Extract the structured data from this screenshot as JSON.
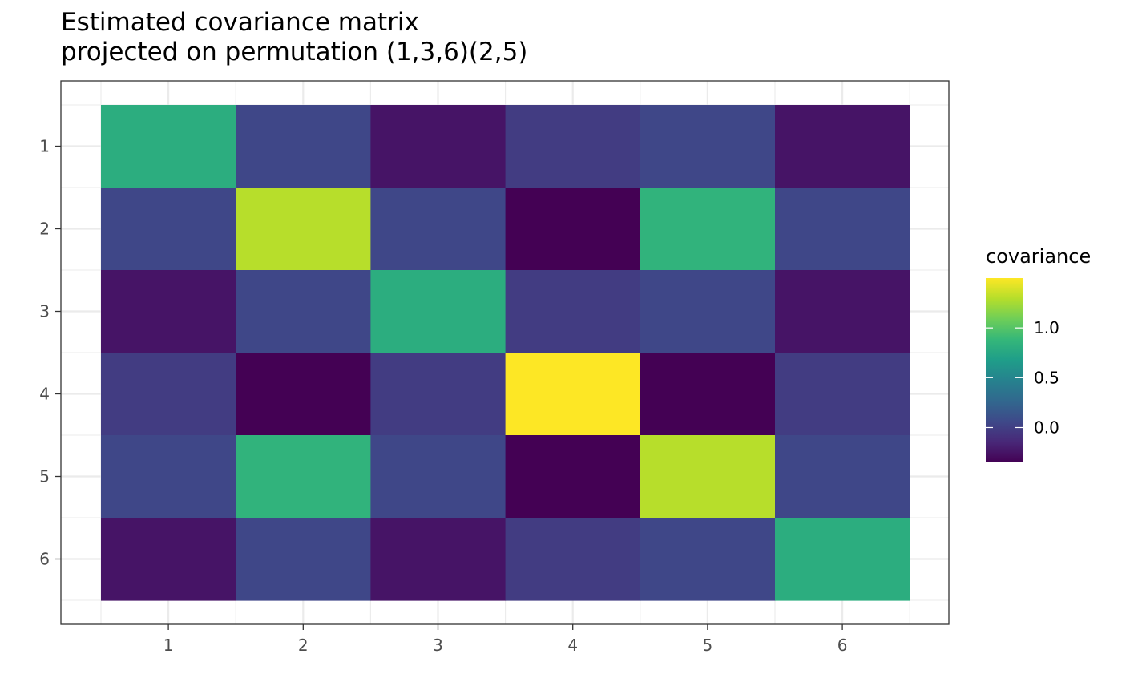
{
  "chart_data": {
    "type": "heatmap",
    "title": [
      "Estimated covariance matrix",
      "projected on permutation (1,3,6)(2,5)"
    ],
    "xlabel": "",
    "ylabel": "",
    "x_categories": [
      "1",
      "2",
      "3",
      "4",
      "5",
      "6"
    ],
    "y_categories": [
      "1",
      "2",
      "3",
      "4",
      "5",
      "6"
    ],
    "y_order": "top-to-bottom",
    "values": [
      [
        0.8,
        0.05,
        -0.25,
        -0.02,
        0.05,
        -0.25
      ],
      [
        0.05,
        1.3,
        0.05,
        -0.35,
        0.85,
        0.05
      ],
      [
        -0.25,
        0.05,
        0.8,
        -0.02,
        0.05,
        -0.25
      ],
      [
        -0.02,
        -0.35,
        -0.02,
        1.5,
        -0.35,
        -0.02
      ],
      [
        0.05,
        0.85,
        0.05,
        -0.35,
        1.3,
        0.05
      ],
      [
        -0.25,
        0.05,
        -0.25,
        -0.02,
        0.05,
        0.8
      ]
    ],
    "colorbar": {
      "title": "covariance",
      "min": -0.35,
      "max": 1.5,
      "ticks": [
        0.0,
        0.5,
        1.0
      ],
      "tick_labels": [
        "0.0",
        "0.5",
        "1.0"
      ],
      "palette": "viridis"
    },
    "grid": true,
    "legend_position": "right"
  }
}
